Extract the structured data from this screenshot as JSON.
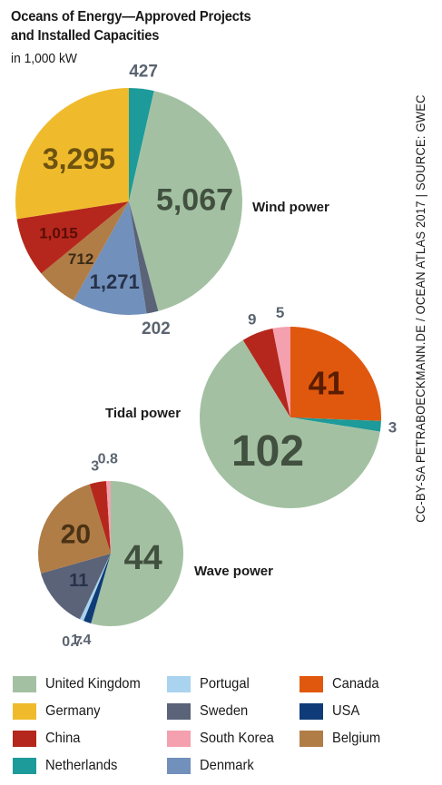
{
  "title_line1": "Oceans of Energy—Approved Projects",
  "title_line2": "and Installed Capacities",
  "unit": "in 1,000 kW",
  "credit": "CC-BY-SA PETRABOECKMANN.DE / OCEAN ATLAS 2017 | SOURCE: GWEC",
  "colors": {
    "United Kingdom": "#a3c1a2",
    "Germany": "#efbb2c",
    "China": "#b5271c",
    "Netherlands": "#1d9a9a",
    "Portugal": "#a9d3ee",
    "Sweden": "#5a6378",
    "South Korea": "#f4a0ae",
    "Denmark": "#7190bb",
    "Canada": "#e0580e",
    "USA": "#0f3c78",
    "Belgium": "#b07d47"
  },
  "legend": [
    "United Kingdom",
    "Germany",
    "China",
    "Netherlands",
    "Portugal",
    "Sweden",
    "South Korea",
    "Denmark",
    "Canada",
    "USA",
    "Belgium"
  ],
  "chart_data": [
    {
      "type": "pie",
      "title": "Wind power",
      "slices": [
        {
          "country": "Netherlands",
          "value": 427,
          "label": "427"
        },
        {
          "country": "United Kingdom",
          "value": 5067,
          "label": "5,067"
        },
        {
          "country": "Sweden",
          "value": 202,
          "label": "202"
        },
        {
          "country": "Denmark",
          "value": 1271,
          "label": "1,271"
        },
        {
          "country": "Belgium",
          "value": 712,
          "label": "712"
        },
        {
          "country": "China",
          "value": 1015,
          "label": "1,015"
        },
        {
          "country": "Germany",
          "value": 3295,
          "label": "3,295"
        }
      ]
    },
    {
      "type": "pie",
      "title": "Tidal power",
      "slices": [
        {
          "country": "Canada",
          "value": 41,
          "label": "41"
        },
        {
          "country": "Netherlands",
          "value": 3,
          "label": "3"
        },
        {
          "country": "United Kingdom",
          "value": 102,
          "label": "102"
        },
        {
          "country": "China",
          "value": 9,
          "label": "9"
        },
        {
          "country": "South Korea",
          "value": 5,
          "label": "5"
        }
      ]
    },
    {
      "type": "pie",
      "title": "Wave power",
      "slices": [
        {
          "country": "United Kingdom",
          "value": 44,
          "label": "44"
        },
        {
          "country": "USA",
          "value": 1.4,
          "label": "1.4"
        },
        {
          "country": "Portugal",
          "value": 0.7,
          "label": "0.7"
        },
        {
          "country": "Sweden",
          "value": 11,
          "label": "11"
        },
        {
          "country": "Belgium",
          "value": 20,
          "label": "20"
        },
        {
          "country": "China",
          "value": 3,
          "label": "3"
        },
        {
          "country": "South Korea",
          "value": 0.8,
          "label": "0.8"
        }
      ]
    }
  ]
}
